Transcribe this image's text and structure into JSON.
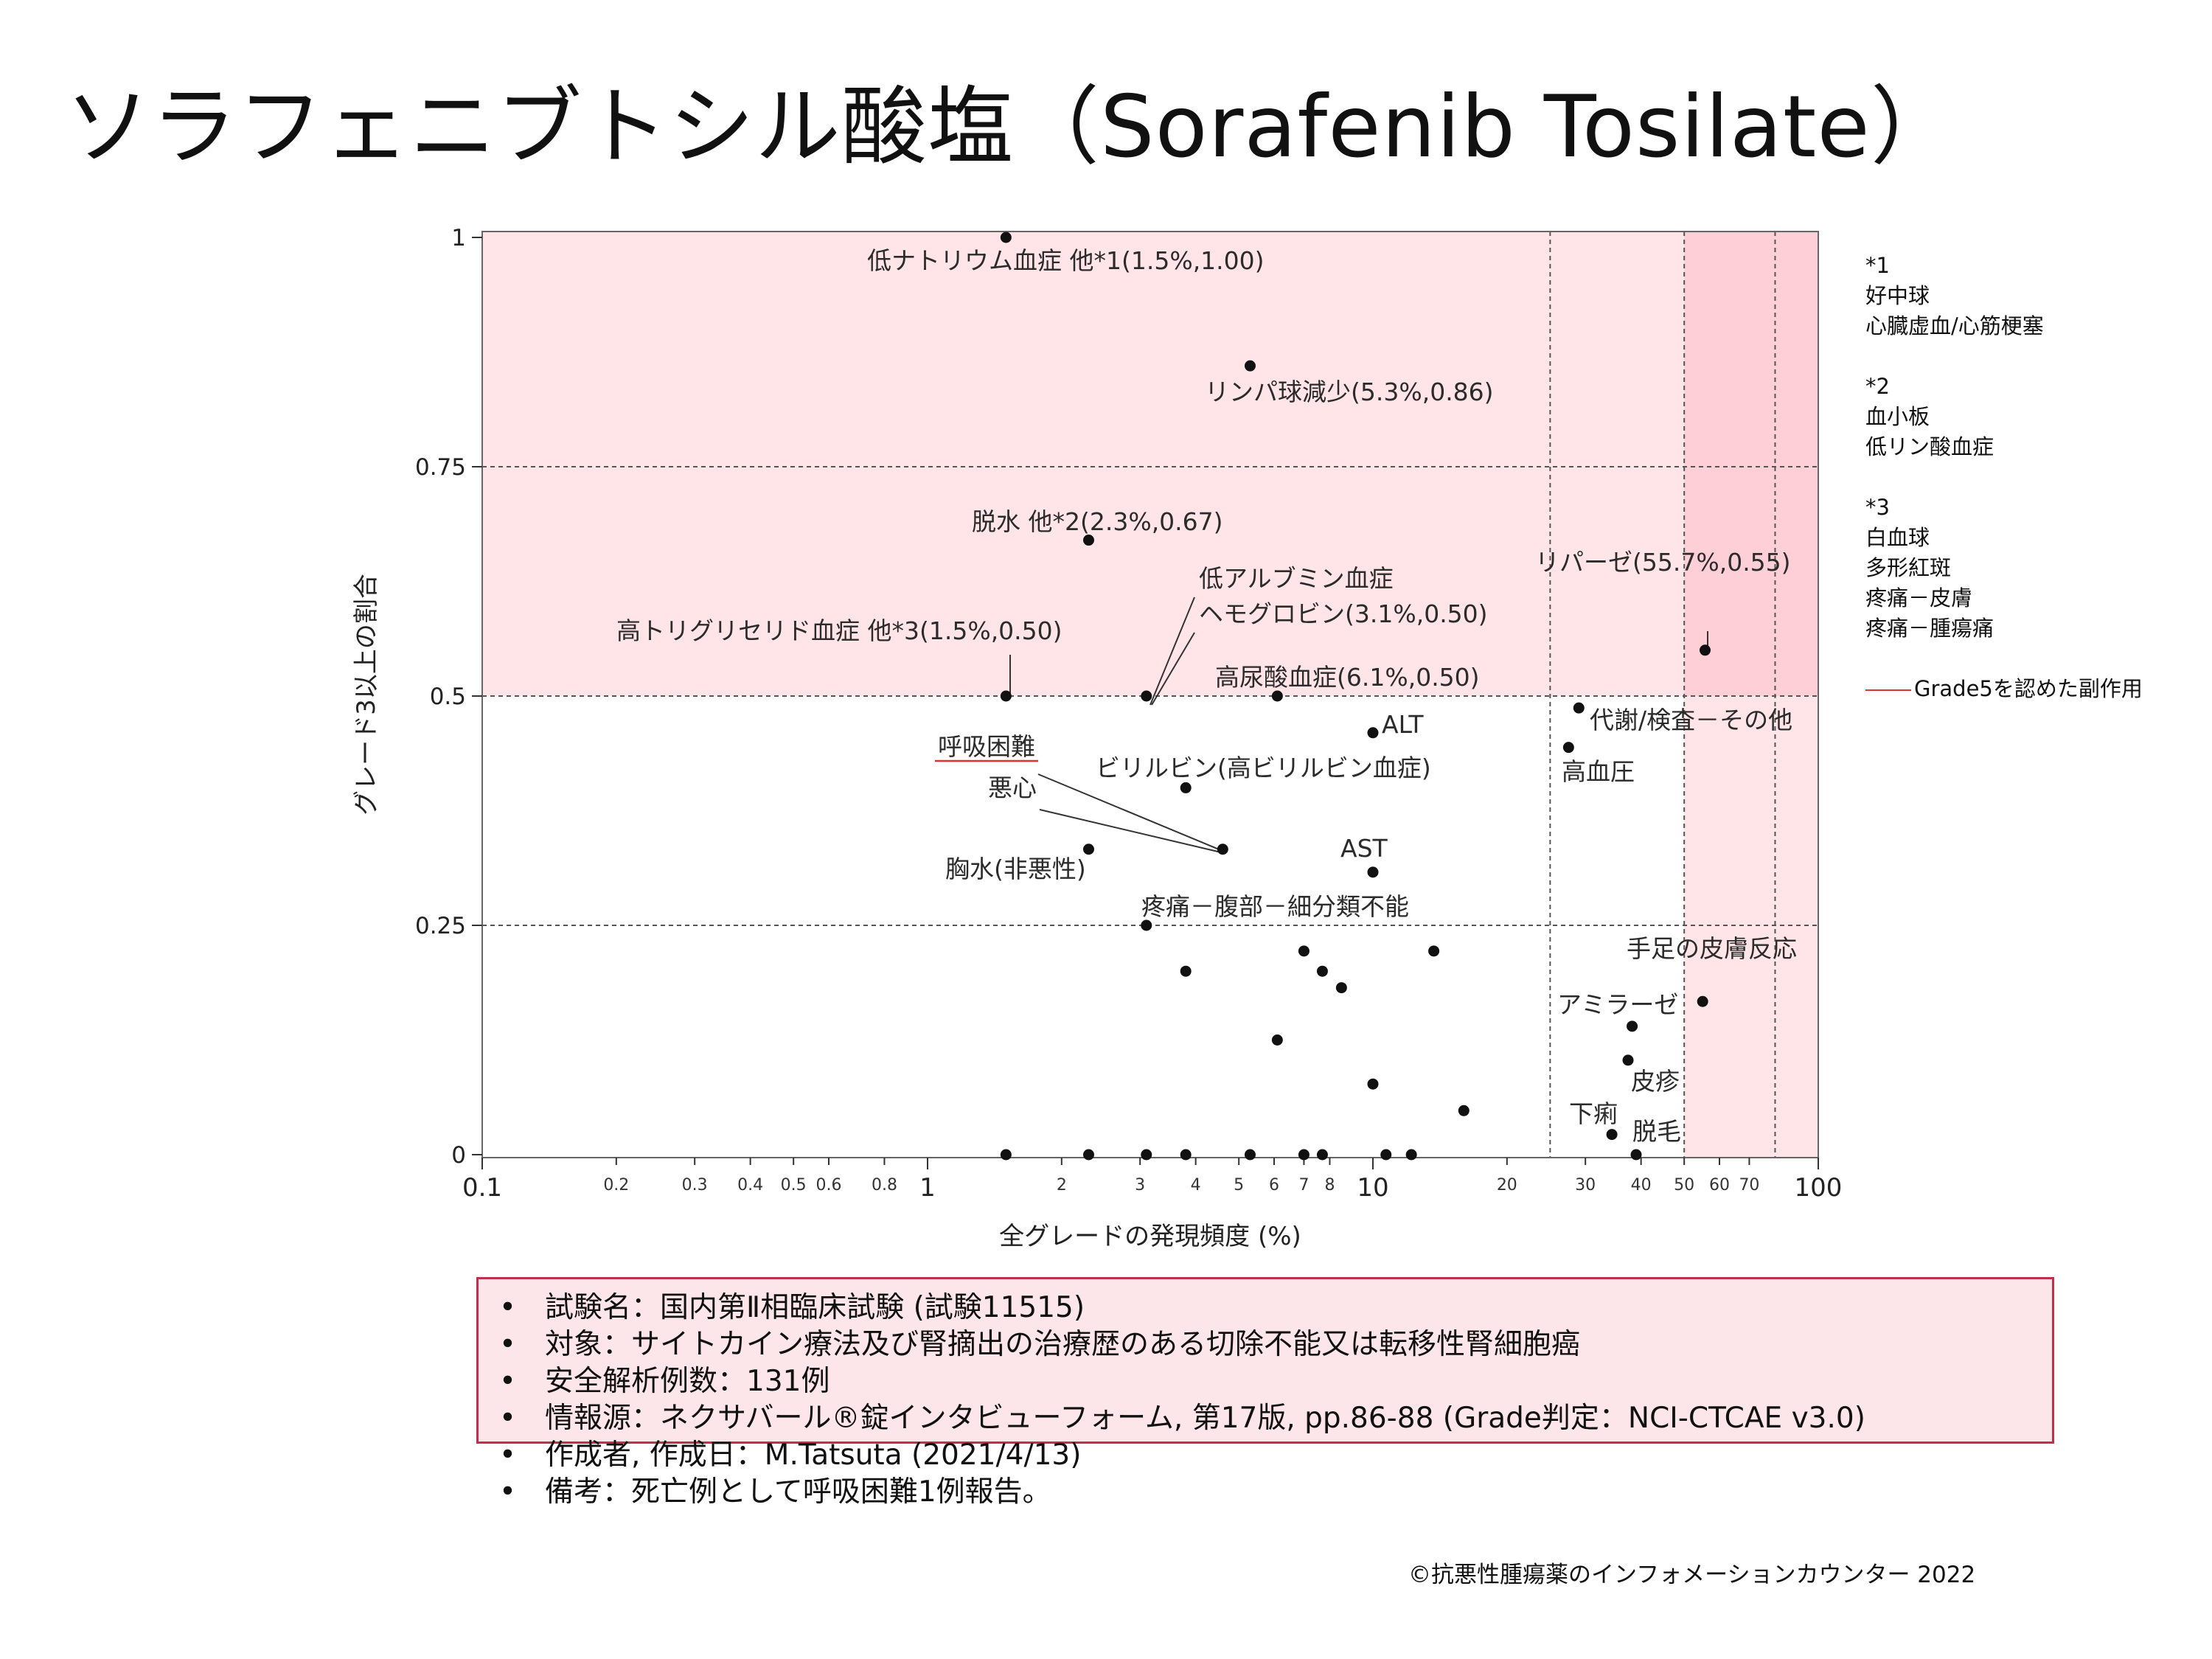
{
  "title": "ソラフェニブトシル酸塩（Sorafenib Tosilate）",
  "chart_data": {
    "type": "scatter",
    "xscale": "log",
    "xlim": [
      0.1,
      100
    ],
    "ylim": [
      0,
      1
    ],
    "xlabel": "全グレードの発現頻度 (%)",
    "ylabel": "グレード3以上の割合",
    "x_ticks_major": [
      "0.1",
      "1",
      "10",
      "100"
    ],
    "x_ticks_minor": [
      "0.2",
      "0.3",
      "0.4",
      "0.5",
      "0.6",
      "0.8",
      "2",
      "3",
      "4",
      "5",
      "6",
      "7",
      "8",
      "20",
      "30",
      "40",
      "50",
      "60",
      "70"
    ],
    "y_ticks": [
      "0",
      "0.25",
      "0.5",
      "0.75",
      "1"
    ],
    "shaded_regions": [
      {
        "x": [
          0.1,
          100
        ],
        "y": [
          0.5,
          1
        ],
        "color": "#ffe4e8"
      },
      {
        "x": [
          50,
          100
        ],
        "y": [
          0,
          1
        ],
        "color": "#ffe4e8"
      },
      {
        "x": [
          50,
          100
        ],
        "y": [
          0.5,
          1
        ],
        "color": "#ffcfd8"
      }
    ],
    "grid_x": [
      25,
      50,
      80
    ],
    "grid_y": [
      0.25,
      0.5,
      0.75
    ],
    "points": [
      [
        1.5,
        1.0
      ],
      [
        5.3,
        0.86
      ],
      [
        2.3,
        0.67
      ],
      [
        1.5,
        0.5
      ],
      [
        3.1,
        0.5
      ],
      [
        6.1,
        0.5
      ],
      [
        10,
        0.46
      ],
      [
        3.8,
        0.4
      ],
      [
        4.6,
        0.333
      ],
      [
        2.3,
        0.333
      ],
      [
        10,
        0.308
      ],
      [
        3.1,
        0.25
      ],
      [
        7.0,
        0.222
      ],
      [
        7.7,
        0.2
      ],
      [
        8.5,
        0.182
      ],
      [
        13.7,
        0.222
      ],
      [
        3.8,
        0.2
      ],
      [
        6.1,
        0.125
      ],
      [
        10,
        0.077
      ],
      [
        16,
        0.048
      ],
      [
        1.5,
        0
      ],
      [
        2.3,
        0
      ],
      [
        3.1,
        0
      ],
      [
        3.8,
        0
      ],
      [
        5.3,
        0
      ],
      [
        7.0,
        0
      ],
      [
        7.7,
        0
      ],
      [
        10.7,
        0
      ],
      [
        12.2,
        0
      ],
      [
        55.7,
        0.55
      ],
      [
        29.0,
        0.487
      ],
      [
        27.5,
        0.444
      ],
      [
        55.0,
        0.167
      ],
      [
        38.2,
        0.14
      ],
      [
        37.4,
        0.103
      ],
      [
        34.4,
        0.022
      ],
      [
        39.0,
        0
      ]
    ],
    "annotations": [
      {
        "text": "低ナトリウム血症 他*1(1.5%,1.00)",
        "at": [
          1.5,
          1.0
        ]
      },
      {
        "text": "リンパ球減少(5.3%,0.86)",
        "at": [
          5.3,
          0.86
        ]
      },
      {
        "text": "脱水 他*2(2.3%,0.67)",
        "at": [
          2.3,
          0.67
        ]
      },
      {
        "text": "低アルブミン血症",
        "at": [
          3.1,
          0.5
        ]
      },
      {
        "text": "ヘモグロビン(3.1%,0.50)",
        "at": [
          3.1,
          0.5
        ]
      },
      {
        "text": "高トリグリセリド血症 他*3(1.5%,0.50)",
        "at": [
          1.5,
          0.5
        ]
      },
      {
        "text": "高尿酸血症(6.1%,0.50)",
        "at": [
          6.1,
          0.5
        ]
      },
      {
        "text": "ALT",
        "at": [
          10,
          0.46
        ]
      },
      {
        "text": "ビリルビン(高ビリルビン血症)",
        "at": [
          3.8,
          0.4
        ]
      },
      {
        "text": "呼吸困難",
        "at": [
          4.6,
          0.333
        ],
        "grade5": true
      },
      {
        "text": "悪心",
        "at": [
          4.6,
          0.333
        ]
      },
      {
        "text": "胸水(非悪性)",
        "at": [
          2.3,
          0.333
        ]
      },
      {
        "text": "AST",
        "at": [
          10,
          0.308
        ]
      },
      {
        "text": "疼痛－腹部－細分類不能",
        "at": [
          3.1,
          0.25
        ]
      },
      {
        "text": "リパーゼ(55.7%,0.55)",
        "at": [
          55.7,
          0.55
        ]
      },
      {
        "text": "代謝/検査－その他",
        "at": [
          29.0,
          0.487
        ]
      },
      {
        "text": "高血圧",
        "at": [
          27.5,
          0.444
        ]
      },
      {
        "text": "手足の皮膚反応",
        "at": [
          55.0,
          0.167
        ]
      },
      {
        "text": "アミラーゼ",
        "at": [
          38.2,
          0.14
        ]
      },
      {
        "text": "皮疹",
        "at": [
          37.4,
          0.103
        ]
      },
      {
        "text": "下痢",
        "at": [
          34.4,
          0.022
        ]
      },
      {
        "text": "脱毛",
        "at": [
          39.0,
          0
        ]
      }
    ]
  },
  "notes": {
    "n1_label": "*1",
    "n1_items": [
      "好中球",
      "心臓虚血/心筋梗塞"
    ],
    "n2_label": "*2",
    "n2_items": [
      "血小板",
      "低リン酸血症"
    ],
    "n3_label": "*3",
    "n3_items": [
      "白血球",
      "多形紅斑",
      "疼痛－皮膚",
      "疼痛－腫瘍痛"
    ],
    "legend_grade5": "Grade5を認めた副作用"
  },
  "info": [
    "試験名：国内第Ⅱ相臨床試験 (試験11515)",
    "対象：サイトカイン療法及び腎摘出の治療歴のある切除不能又は転移性腎細胞癌",
    "安全解析例数：131例",
    "情報源：ネクサバール®錠インタビューフォーム, 第17版, pp.86-88 (Grade判定：NCI-CTCAE v3.0)",
    "作成者, 作成日：M.Tatsuta (2021/4/13)",
    "備考：死亡例として呼吸困難1例報告。"
  ],
  "bullet": "•",
  "copyright": "©抗悪性腫瘍薬のインフォメーションカウンター  2022"
}
